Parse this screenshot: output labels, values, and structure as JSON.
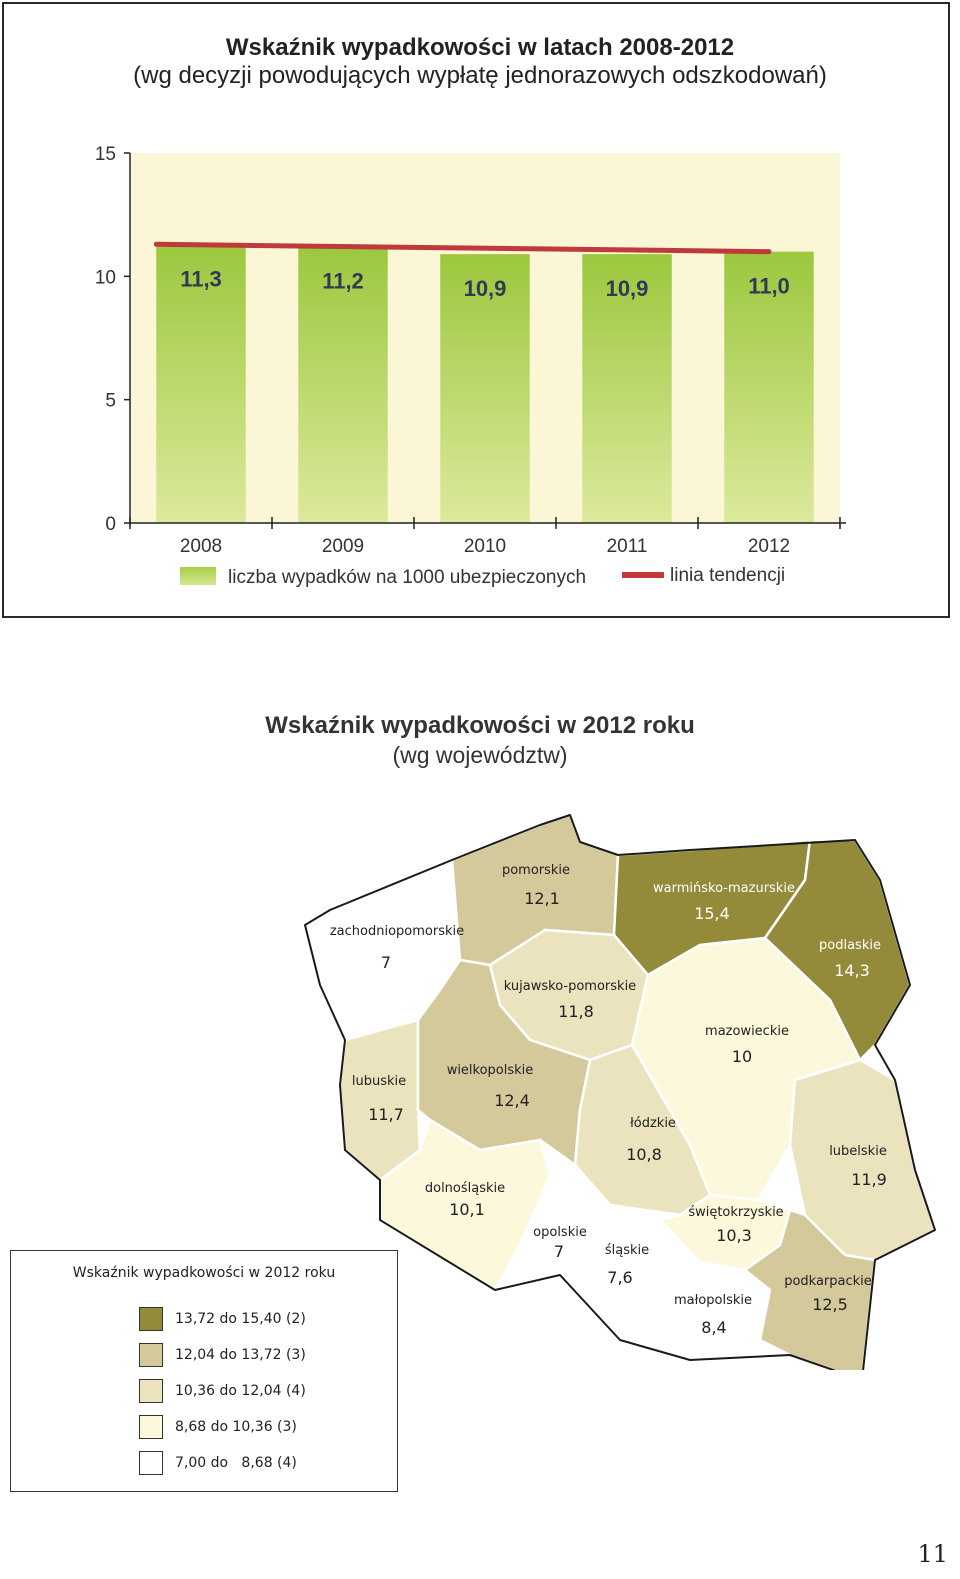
{
  "chart_data": {
    "type": "bar",
    "title": "Wskaźnik wypadkowości w latach 2008-2012",
    "subtitle": "(wg decyzji powodujących wypłatę jednorazowych odszkodowań)",
    "categories": [
      "2008",
      "2009",
      "2010",
      "2011",
      "2012"
    ],
    "series": [
      {
        "name": "liczba wypadków na 1000 ubezpieczonych",
        "values": [
          11.3,
          11.2,
          10.9,
          10.9,
          11.0
        ],
        "labels": [
          "11,3",
          "11,2",
          "10,9",
          "10,9",
          "11,0"
        ]
      }
    ],
    "trend_line": {
      "name": "linia tendencji",
      "start": 11.3,
      "end": 11.0
    },
    "ylim": [
      0,
      15
    ],
    "yticks": [
      0,
      5,
      10,
      15
    ],
    "grid": false,
    "legend_position": "bottom",
    "colors": {
      "bar_top": "#9bc83e",
      "bar_bottom": "#dbe99a",
      "plot_bg": "#fbf6d6",
      "trend": "#c0393b"
    }
  },
  "map": {
    "title": "Wskaźnik wypadkowości w 2012 roku",
    "subtitle": "(wg województw)",
    "regions": [
      {
        "name": "zachodniopomorskie",
        "value": "7",
        "cls": 4
      },
      {
        "name": "pomorskie",
        "value": "12,1",
        "cls": 1
      },
      {
        "name": "warmińsko-mazurskie",
        "value": "15,4",
        "cls": 0
      },
      {
        "name": "podlaskie",
        "value": "14,3",
        "cls": 0
      },
      {
        "name": "kujawsko-pomorskie",
        "value": "11,8",
        "cls": 2
      },
      {
        "name": "mazowieckie",
        "value": "10",
        "cls": 3
      },
      {
        "name": "lubuskie",
        "value": "11,7",
        "cls": 2
      },
      {
        "name": "wielkopolskie",
        "value": "12,4",
        "cls": 1
      },
      {
        "name": "łódzkie",
        "value": "10,8",
        "cls": 2
      },
      {
        "name": "lubelskie",
        "value": "11,9",
        "cls": 2
      },
      {
        "name": "dolnośląskie",
        "value": "10,1",
        "cls": 3
      },
      {
        "name": "opolskie",
        "value": "7",
        "cls": 4
      },
      {
        "name": "śląskie",
        "value": "7,6",
        "cls": 4
      },
      {
        "name": "świętokrzyskie",
        "value": "10,3",
        "cls": 3
      },
      {
        "name": "małopolskie",
        "value": "8,4",
        "cls": 4
      },
      {
        "name": "podkarpackie",
        "value": "12,5",
        "cls": 1
      }
    ],
    "legend": {
      "title": "Wskaźnik wypadkowości w 2012 roku",
      "items": [
        {
          "label": "13,72 do 15,40 (2)",
          "color": "#948b3a"
        },
        {
          "label": "12,04 do 13,72 (3)",
          "color": "#d3c99a"
        },
        {
          "label": "10,36 do 12,04 (4)",
          "color": "#ebe3bd"
        },
        {
          "label": "8,68 do 10,36 (3)",
          "color": "#fbf8dc"
        },
        {
          "label": "7,00 do   8,68 (4)",
          "color": "#ffffff"
        }
      ]
    }
  },
  "page_number": "11"
}
